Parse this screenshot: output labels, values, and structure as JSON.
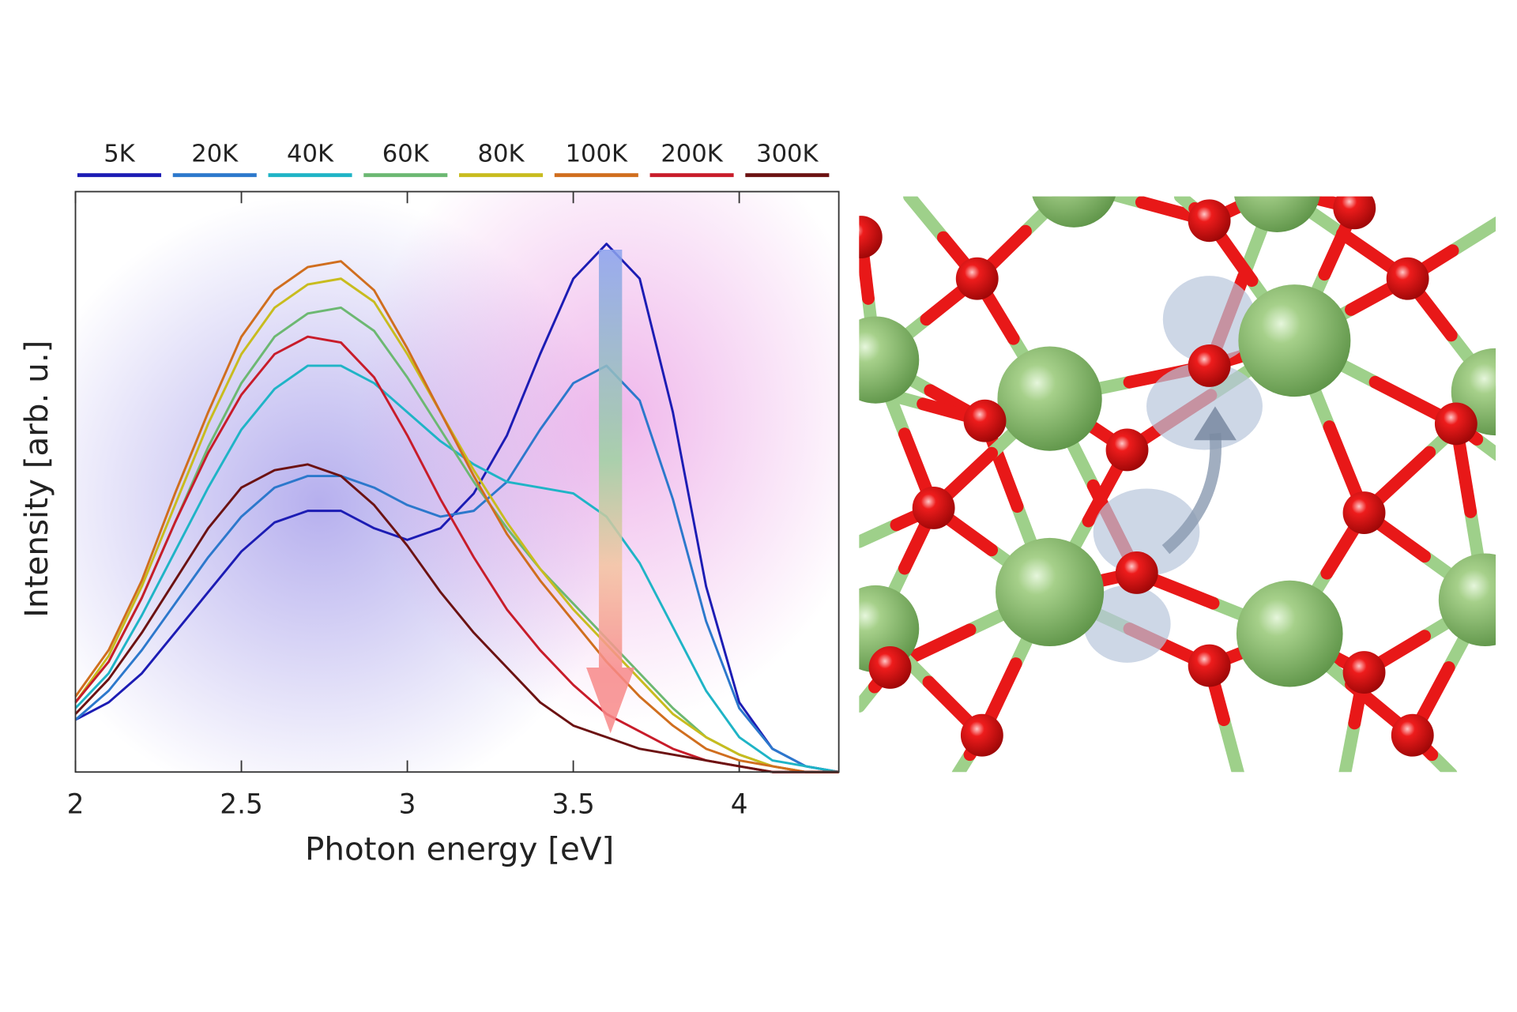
{
  "chart_data": {
    "type": "line",
    "xlabel": "Photon energy [eV]",
    "ylabel": "Intensity [arb. u.]",
    "x": [
      2,
      2.1,
      2.2,
      2.3,
      2.4,
      2.5,
      2.6,
      2.7,
      2.8,
      2.9,
      3,
      3.1,
      3.2,
      3.3,
      3.4,
      3.5,
      3.6,
      3.7,
      3.8,
      3.9,
      4,
      4.1,
      4.2,
      4.3
    ],
    "series": [
      {
        "name": "5K",
        "color": "#1c1cb4",
        "values": [
          0.09,
          0.12,
          0.17,
          0.24,
          0.31,
          0.38,
          0.43,
          0.45,
          0.45,
          0.42,
          0.4,
          0.42,
          0.48,
          0.58,
          0.72,
          0.85,
          0.91,
          0.85,
          0.62,
          0.32,
          0.12,
          0.04,
          0.01,
          0
        ]
      },
      {
        "name": "20K",
        "color": "#2c78cc",
        "values": [
          0.09,
          0.14,
          0.21,
          0.29,
          0.37,
          0.44,
          0.49,
          0.51,
          0.51,
          0.49,
          0.46,
          0.44,
          0.45,
          0.5,
          0.59,
          0.67,
          0.7,
          0.64,
          0.47,
          0.26,
          0.11,
          0.04,
          0.01,
          0
        ]
      },
      {
        "name": "40K",
        "color": "#1fb4c6",
        "values": [
          0.11,
          0.17,
          0.27,
          0.38,
          0.49,
          0.59,
          0.66,
          0.7,
          0.7,
          0.67,
          0.62,
          0.57,
          0.53,
          0.5,
          0.49,
          0.48,
          0.44,
          0.36,
          0.25,
          0.14,
          0.06,
          0.02,
          0.01,
          0
        ]
      },
      {
        "name": "60K",
        "color": "#6cb872",
        "values": [
          0.12,
          0.19,
          0.3,
          0.43,
          0.56,
          0.67,
          0.75,
          0.79,
          0.8,
          0.76,
          0.68,
          0.59,
          0.5,
          0.42,
          0.35,
          0.29,
          0.23,
          0.17,
          0.11,
          0.06,
          0.03,
          0.01,
          0,
          0
        ]
      },
      {
        "name": "80K",
        "color": "#c8bc1e",
        "values": [
          0.12,
          0.2,
          0.32,
          0.46,
          0.6,
          0.72,
          0.8,
          0.84,
          0.85,
          0.81,
          0.72,
          0.62,
          0.52,
          0.43,
          0.35,
          0.28,
          0.22,
          0.16,
          0.1,
          0.06,
          0.03,
          0.01,
          0,
          0
        ]
      },
      {
        "name": "100K",
        "color": "#d06e1e",
        "values": [
          0.13,
          0.21,
          0.33,
          0.48,
          0.62,
          0.75,
          0.83,
          0.87,
          0.88,
          0.83,
          0.73,
          0.62,
          0.51,
          0.41,
          0.33,
          0.26,
          0.19,
          0.13,
          0.08,
          0.04,
          0.02,
          0.01,
          0,
          0
        ]
      },
      {
        "name": "200K",
        "color": "#c81c2a",
        "values": [
          0.12,
          0.19,
          0.3,
          0.43,
          0.55,
          0.65,
          0.72,
          0.75,
          0.74,
          0.68,
          0.58,
          0.47,
          0.37,
          0.28,
          0.21,
          0.15,
          0.1,
          0.07,
          0.04,
          0.02,
          0.01,
          0,
          0,
          0
        ]
      },
      {
        "name": "300K",
        "color": "#6c1212",
        "values": [
          0.1,
          0.16,
          0.24,
          0.33,
          0.42,
          0.49,
          0.52,
          0.53,
          0.51,
          0.46,
          0.39,
          0.31,
          0.24,
          0.18,
          0.12,
          0.08,
          0.06,
          0.04,
          0.03,
          0.02,
          0.01,
          0,
          0,
          0
        ]
      }
    ],
    "xlim": [
      2,
      4.3
    ],
    "xticks": [
      2,
      2.5,
      3,
      3.5,
      4
    ],
    "ylim": [
      0,
      1
    ]
  }
}
